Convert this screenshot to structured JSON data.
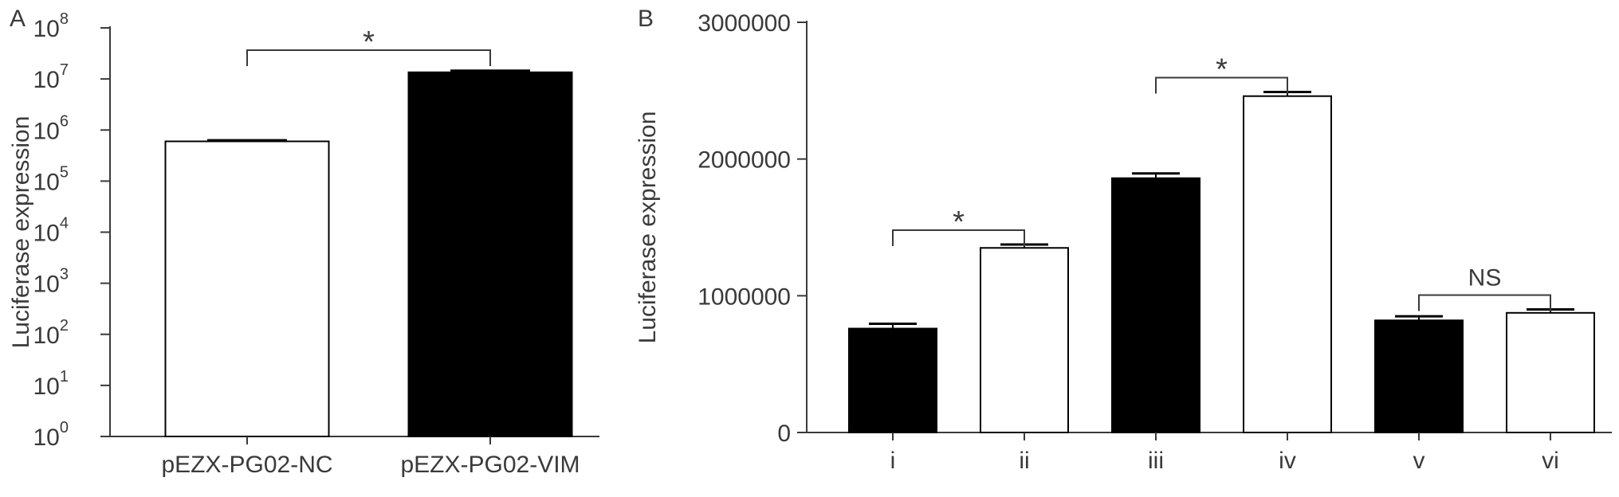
{
  "chart_data": [
    {
      "panel_label": "A",
      "type": "bar",
      "y_scale": "log",
      "categories": [
        "pEZX-PG02-NC",
        "pEZX-PG02-VIM"
      ],
      "values": [
        600000,
        13500000
      ],
      "errors": [
        30000,
        1000000
      ],
      "bar_colors": [
        "#ffffff",
        "#000000"
      ],
      "ylabel": "Luciferase expression",
      "ylim": [
        1,
        100000000
      ],
      "y_tick_base": "10",
      "y_tick_exponents": [
        "0",
        "1",
        "2",
        "3",
        "4",
        "5",
        "6",
        "7",
        "8"
      ],
      "significance": [
        {
          "from": 0,
          "to": 1,
          "label": "*"
        }
      ]
    },
    {
      "panel_label": "B",
      "type": "bar",
      "y_scale": "linear",
      "categories": [
        "i",
        "ii",
        "iii",
        "iv",
        "v",
        "vi"
      ],
      "values": [
        760000,
        1350000,
        1860000,
        2460000,
        820000,
        875000
      ],
      "errors": [
        35000,
        25000,
        35000,
        30000,
        30000,
        25000
      ],
      "bar_colors": [
        "#000000",
        "#ffffff",
        "#000000",
        "#ffffff",
        "#000000",
        "#ffffff"
      ],
      "ylabel": "Luciferase expression",
      "ylim": [
        0,
        3000000
      ],
      "y_ticks": [
        0,
        1000000,
        2000000,
        3000000
      ],
      "y_tick_labels": [
        "0",
        "1000000",
        "2000000",
        "3000000"
      ],
      "significance": [
        {
          "from": 0,
          "to": 1,
          "label": "*"
        },
        {
          "from": 2,
          "to": 3,
          "label": "*"
        },
        {
          "from": 4,
          "to": 5,
          "label": "NS"
        }
      ]
    }
  ]
}
